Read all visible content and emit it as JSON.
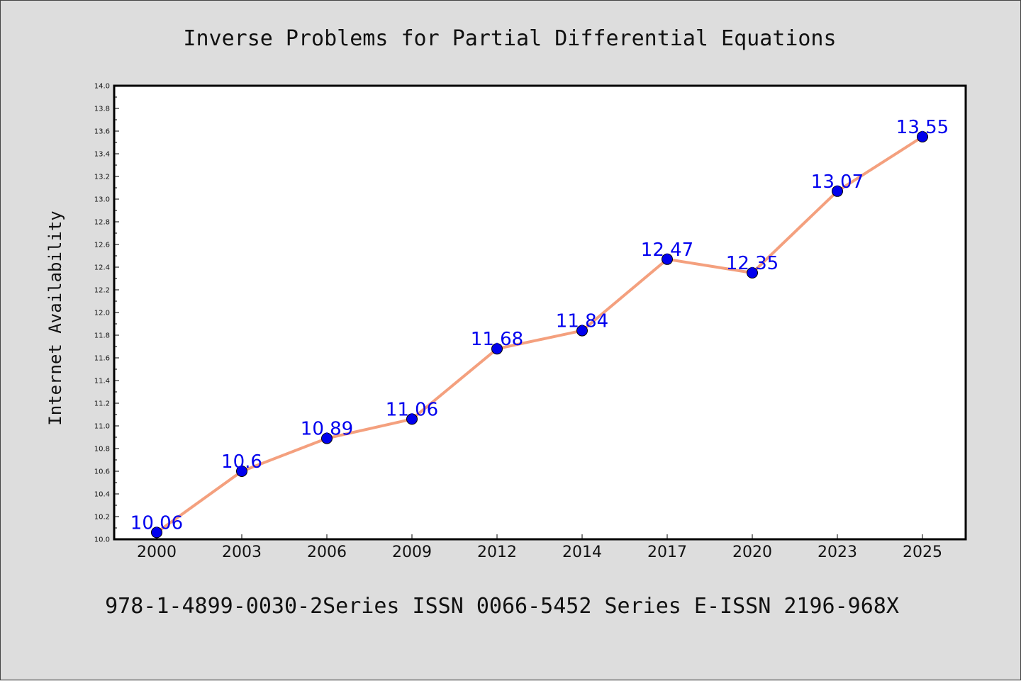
{
  "chart_data": {
    "type": "line",
    "title": "Inverse Problems for Partial Differential Equations",
    "xlabel": "",
    "ylabel": "Internet Availability",
    "categories": [
      "2000",
      "2003",
      "2006",
      "2009",
      "2012",
      "2014",
      "2017",
      "2020",
      "2023",
      "2025"
    ],
    "series": [
      {
        "values": [
          10.06,
          10.6,
          10.89,
          11.06,
          11.68,
          11.84,
          12.47,
          12.35,
          13.07,
          13.55
        ]
      }
    ],
    "data_labels": [
      "10.06",
      "10.6",
      "10.89",
      "11.06",
      "11.68",
      "11.84",
      "12.47",
      "12.35",
      "13.07",
      "13.55"
    ],
    "ylim": [
      10.0,
      14.0
    ],
    "ytick_labels": [
      "10.0",
      "10.2",
      "10.4",
      "10.6",
      "10.8",
      "11.0",
      "11.2",
      "11.4",
      "11.6",
      "11.8",
      "12.0",
      "12.2",
      "12.4",
      "12.6",
      "12.8",
      "13.0",
      "13.2",
      "13.4",
      "13.6",
      "13.8",
      "14.0"
    ],
    "grid": false,
    "line_color": "#f4a07e",
    "marker_color": "#0000ee",
    "label_color": "#0000ee",
    "footer": "978-1-4899-0030-2Series ISSN 0066-5452 Series E-ISSN 2196-968X"
  }
}
